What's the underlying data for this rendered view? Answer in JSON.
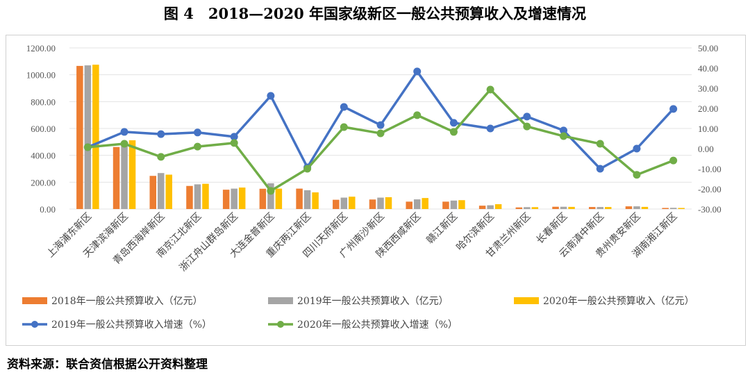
{
  "title": "图 4　2018—2020 年国家级新区一般公共预算收入及增速情况",
  "source": "资料来源：联合资信根据公开资料整理",
  "chart_data": {
    "type": "bar+line",
    "categories": [
      "上海浦东新区",
      "天津滨海新区",
      "青岛西海岸新区",
      "南京江北新区",
      "浙江舟山群岛新区",
      "大连金普新区",
      "重庆两江新区",
      "四川天府新区",
      "广州南沙新区",
      "陕西西咸新区",
      "赣江新区",
      "哈尔滨新区",
      "甘肃兰州新区",
      "长春新区",
      "云南滇中新区",
      "贵州贵安新区",
      "湖南湘江新区"
    ],
    "left_axis": {
      "ylim": [
        0,
        1200
      ],
      "ticks": [
        "0.00",
        "200.00",
        "400.00",
        "600.00",
        "800.00",
        "1000.00",
        "1200.00"
      ]
    },
    "right_axis": {
      "ylim": [
        -30,
        50
      ],
      "ticks": [
        "-30.00",
        "-20.00",
        "-10.00",
        "0.00",
        "10.00",
        "20.00",
        "30.00",
        "40.00",
        "50.00"
      ]
    },
    "grid": true,
    "legend": "bottom",
    "bar_series": [
      {
        "name": "2018年一般公共预算收入（亿元）",
        "color": "#ED7D31",
        "values": [
          1066,
          462,
          247,
          172,
          144,
          151,
          152,
          69,
          71,
          55,
          55,
          25,
          12,
          17,
          15,
          20,
          8
        ]
      },
      {
        "name": "2019年一般公共预算收入（亿元）",
        "color": "#A5A5A5",
        "values": [
          1070,
          495,
          268,
          184,
          152,
          192,
          140,
          85,
          85,
          72,
          63,
          28,
          14,
          17,
          15,
          20,
          9
        ]
      },
      {
        "name": "2020年一般公共预算收入（亿元）",
        "color": "#FFC000",
        "values": [
          1075,
          512,
          256,
          188,
          160,
          152,
          124,
          92,
          88,
          82,
          66,
          36,
          14,
          16,
          15,
          16,
          8
        ]
      }
    ],
    "line_series": [
      {
        "name": "2019年一般公共预算收入增速（%）",
        "color": "#4472C4",
        "values": [
          0.7,
          8.3,
          7.2,
          8.0,
          5.9,
          26.2,
          -9.3,
          20.7,
          11.7,
          38.3,
          12.8,
          10.0,
          15.9,
          9.0,
          -10.0,
          0.0,
          19.7
        ]
      },
      {
        "name": "2020年一般公共预算收入增速（%）",
        "color": "#70AD47",
        "values": [
          0.7,
          2.4,
          -4.1,
          1.0,
          2.8,
          -21.0,
          -10.0,
          10.7,
          7.6,
          16.6,
          8.3,
          29.3,
          11.0,
          6.2,
          2.4,
          -13.0,
          -5.9
        ]
      }
    ]
  }
}
